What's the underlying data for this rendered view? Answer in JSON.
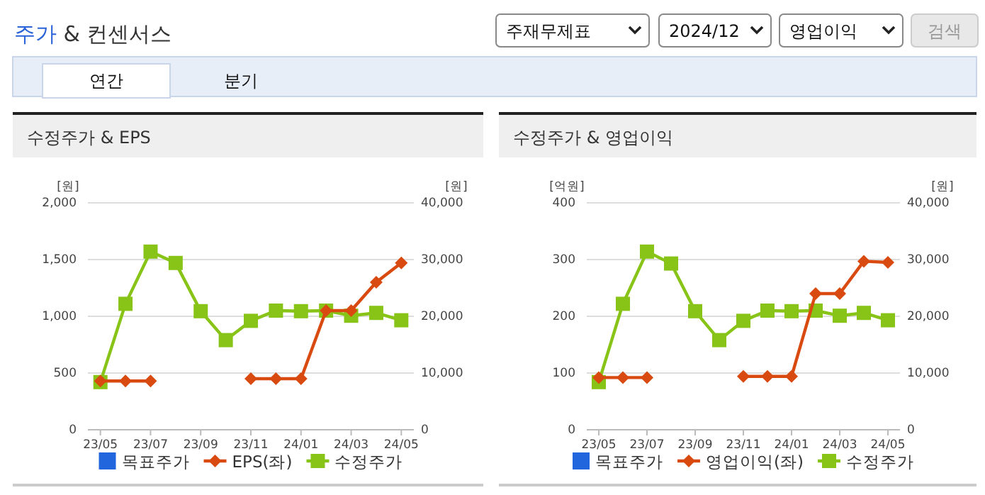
{
  "chart_data": [
    {
      "type": "other",
      "title": "주가 & 컨센서스",
      "annotations": [
        "주재무제표",
        "2024/12",
        "영업이익",
        "검색",
        "연간",
        "분기"
      ]
    },
    {
      "type": "line",
      "title": "수정주가 & EPS",
      "ylabel": "[원]",
      "y2label": "[원]",
      "categories": [
        "23/05",
        null,
        "23/07",
        null,
        "23/09",
        null,
        "23/11",
        null,
        "24/01",
        null,
        "24/03",
        null,
        "24/05"
      ],
      "ylim": [
        0,
        2000
      ],
      "yticks": [
        0,
        {
          "value": 500,
          "label": "500"
        },
        {
          "value": 1000,
          "label": "1,000"
        },
        {
          "value": 1500,
          "label": "1,500"
        },
        {
          "value": 2000,
          "label": "2,000"
        }
      ],
      "y2lim": [
        0,
        40000
      ],
      "y2ticks": [
        0,
        {
          "value": 10000,
          "label": "10,000"
        },
        {
          "value": 20000,
          "label": "20,000"
        },
        {
          "value": 30000,
          "label": "30,000"
        },
        {
          "value": 40000,
          "label": "40,000"
        }
      ],
      "grid": "y",
      "legend": "bottom",
      "series": [
        {
          "name": "목표주가",
          "type": "bar",
          "color": "#2266dd",
          "values": [
            null,
            null,
            null,
            null,
            null,
            null,
            null,
            null,
            null,
            null,
            null,
            null,
            null
          ]
        },
        {
          "name": "EPS(좌)",
          "type": "line",
          "color": "#d84a10",
          "marker": "diamond",
          "values": [
            430,
            430,
            430,
            null,
            null,
            null,
            450,
            450,
            450,
            1050,
            1050,
            1300,
            1470
          ]
        },
        {
          "name": "수정주가",
          "type": "line",
          "axis": "y2",
          "color": "#88c417",
          "marker": "square",
          "values": [
            8400,
            22200,
            31400,
            29400,
            20900,
            15800,
            19200,
            21000,
            20900,
            21000,
            20100,
            20600,
            19300
          ]
        }
      ]
    },
    {
      "type": "line",
      "title": "수정주가 & 영업이익",
      "ylabel": "[억원]",
      "y2label": "[원]",
      "categories": [
        "23/05",
        null,
        "23/07",
        null,
        "23/09",
        null,
        "23/11",
        null,
        "24/01",
        null,
        "24/03",
        null,
        "24/05"
      ],
      "ylim": [
        0,
        400
      ],
      "yticks": [
        0,
        100,
        200,
        300,
        400
      ],
      "y2lim": [
        0,
        40000
      ],
      "y2ticks": [
        0,
        {
          "value": 10000,
          "label": "10,000"
        },
        {
          "value": 20000,
          "label": "20,000"
        },
        {
          "value": 30000,
          "label": "30,000"
        },
        {
          "value": 40000,
          "label": "40,000"
        }
      ],
      "grid": "y",
      "legend": "bottom",
      "series": [
        {
          "name": "목표주가",
          "type": "bar",
          "color": "#2266dd",
          "values": [
            null,
            null,
            null,
            null,
            null,
            null,
            null,
            null,
            null,
            null,
            null,
            null,
            null
          ]
        },
        {
          "name": "영업이익(좌)",
          "type": "line",
          "color": "#d84a10",
          "marker": "diamond",
          "values": [
            92,
            92,
            92,
            null,
            null,
            null,
            94,
            94,
            94,
            240,
            240,
            297,
            295
          ]
        },
        {
          "name": "수정주가",
          "type": "line",
          "axis": "y2",
          "color": "#88c417",
          "marker": "square",
          "values": [
            8400,
            22200,
            31400,
            29300,
            20900,
            15800,
            19200,
            21000,
            20900,
            21000,
            20100,
            20600,
            19300
          ]
        }
      ]
    }
  ]
}
